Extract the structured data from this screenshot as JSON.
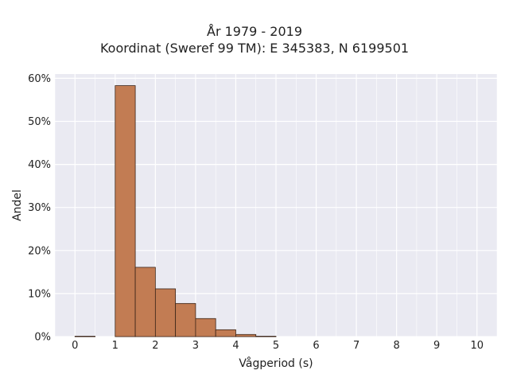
{
  "chart_data": {
    "type": "bar",
    "title_lines": [
      "År 1979 - 2019",
      "Koordinat (Sweref 99 TM): E 345383, N 6199501"
    ],
    "xlabel": "Vågperiod (s)",
    "ylabel": "Andel",
    "xlim": [
      -0.5,
      10.5
    ],
    "ylim": [
      0,
      61
    ],
    "x_ticks": [
      0,
      1,
      2,
      3,
      4,
      5,
      6,
      7,
      8,
      9,
      10
    ],
    "y_ticks": [
      0,
      10,
      20,
      30,
      40,
      50,
      60
    ],
    "y_tick_labels": [
      "0%",
      "10%",
      "20%",
      "30%",
      "40%",
      "50%",
      "60%"
    ],
    "bin_width": 0.5,
    "bins": [
      {
        "start": 0.0,
        "end": 0.5,
        "value": 0.1
      },
      {
        "start": 1.0,
        "end": 1.5,
        "value": 58.3
      },
      {
        "start": 1.5,
        "end": 2.0,
        "value": 16.1
      },
      {
        "start": 2.0,
        "end": 2.5,
        "value": 11.1
      },
      {
        "start": 2.5,
        "end": 3.0,
        "value": 7.7
      },
      {
        "start": 3.0,
        "end": 3.5,
        "value": 4.2
      },
      {
        "start": 3.5,
        "end": 4.0,
        "value": 1.6
      },
      {
        "start": 4.0,
        "end": 4.5,
        "value": 0.5
      },
      {
        "start": 4.5,
        "end": 5.0,
        "value": 0.1
      }
    ],
    "grid": true,
    "colors": {
      "bar_fill": "#c27c53",
      "bar_edge": "#3a2418",
      "plot_bg": "#eaeaf2",
      "grid": "#ffffff"
    }
  }
}
